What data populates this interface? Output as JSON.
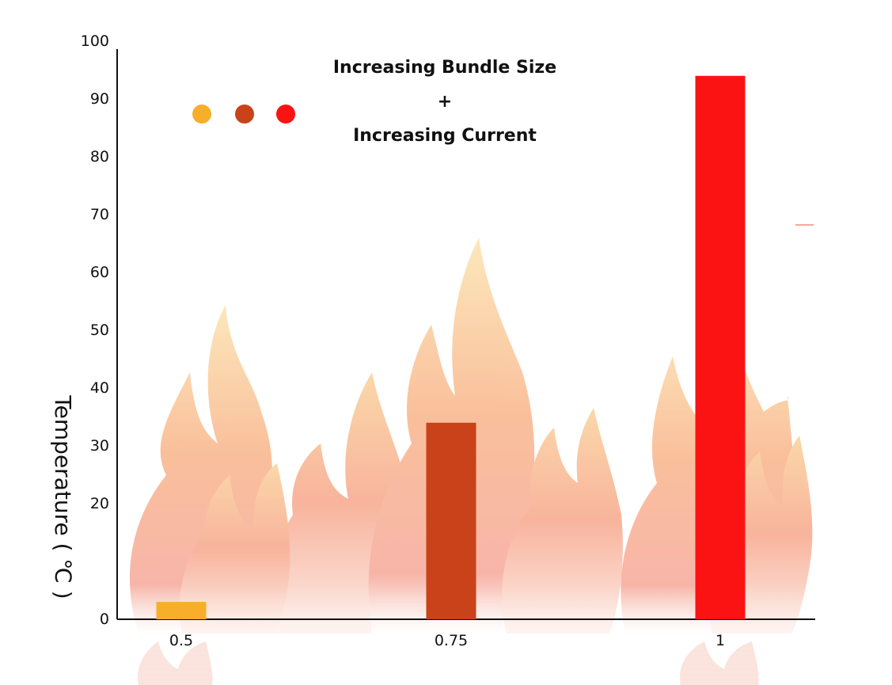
{
  "chart_data": {
    "type": "bar",
    "categories": [
      "0.5",
      "0.75",
      "1"
    ],
    "values": [
      3,
      34,
      94
    ],
    "ylabel": "Temperature ( ℃ )",
    "xlabel": "",
    "ylim": [
      0,
      100
    ],
    "yticks": [
      0,
      20,
      30,
      40,
      50,
      60,
      70,
      80,
      90,
      100
    ],
    "annotation_lines": [
      "Increasing Bundle Size",
      "+",
      "Increasing Current"
    ],
    "bar_colors": [
      "#f7ae2a",
      "#c9421a",
      "#fb1313"
    ],
    "legend": "top-left",
    "grid": false,
    "background": "flames"
  }
}
